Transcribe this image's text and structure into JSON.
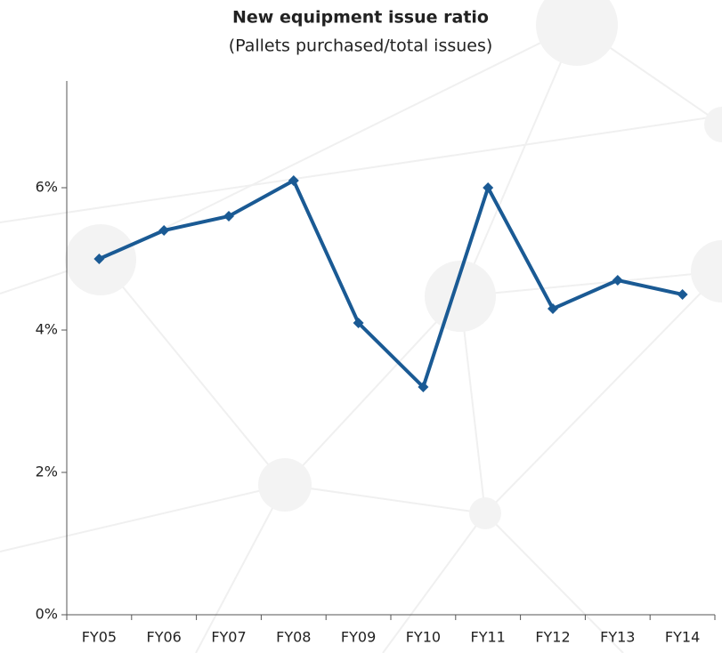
{
  "chart_data": {
    "type": "line",
    "title": "New equipment issue ratio",
    "subtitle": "(Pallets purchased/total issues)",
    "categories": [
      "FY05",
      "FY06",
      "FY07",
      "FY08",
      "FY09",
      "FY10",
      "FY11",
      "FY12",
      "FY13",
      "FY14"
    ],
    "series": [
      {
        "name": "New equipment issue ratio",
        "color": "#1a5a94",
        "values": [
          5.0,
          5.4,
          5.6,
          6.1,
          4.1,
          3.2,
          6.0,
          4.3,
          4.7,
          4.5
        ]
      }
    ],
    "ylim": [
      0,
      7.5
    ],
    "yticks": [
      {
        "value": 0,
        "label": "0%"
      },
      {
        "value": 2,
        "label": "2%"
      },
      {
        "value": 4,
        "label": "4%"
      },
      {
        "value": 6,
        "label": "6%"
      }
    ],
    "grid": false
  }
}
